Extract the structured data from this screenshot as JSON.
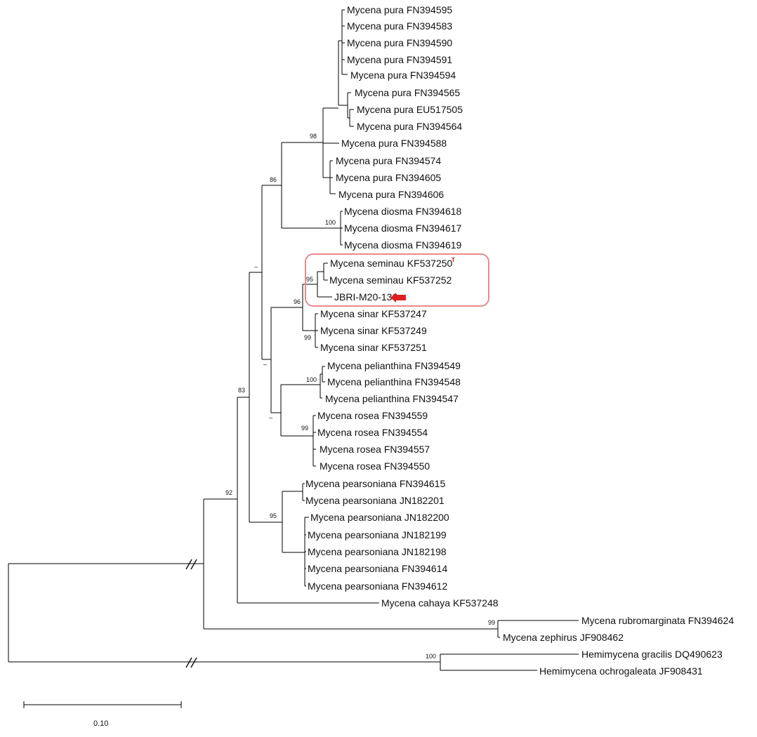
{
  "taxa": [
    "Mycena pura FN394595",
    "Mycena pura FN394583",
    "Mycena pura FN394590",
    "Mycena pura FN394591",
    "Mycena pura FN394594",
    "Mycena pura FN394565",
    "Mycena pura EU517505",
    "Mycena pura FN394564",
    "Mycena pura FN394588",
    "Mycena pura FN394574",
    "Mycena pura FN394605",
    "Mycena pura FN394606",
    "Mycena diosma FN394618",
    "Mycena diosma FN394617",
    "Mycena diosma FN394619",
    "Mycena seminau KF537250",
    "Mycena seminau KF537252",
    "JBRI-M20-136",
    "Mycena sinar KF537247",
    "Mycena sinar KF537249",
    "Mycena sinar KF537251",
    "Mycena pelianthina FN394549",
    "Mycena pelianthina FN394548",
    "Mycena pelianthina FN394547",
    "Mycena rosea FN394559",
    "Mycena rosea FN394554",
    "Mycena rosea FN394557",
    "Mycena rosea FN394550",
    "Mycena pearsoniana FN394615",
    "Mycena pearsoniana JN182201",
    "Mycena pearsoniana JN182200",
    "Mycena pearsoniana JN182199",
    "Mycena pearsoniana JN182198",
    "Mycena pearsoniana FN394614",
    "Mycena pearsoniana FN394612",
    "Mycena cahaya KF537248",
    "Mycena rubromarginata FN394624",
    "Mycena zephirus JF908462",
    "Hemimycena gracilis DQ490623",
    "Hemimycena ochrogaleata JF908431"
  ],
  "type_marker": "T",
  "support_values": [
    "98",
    "86",
    "100",
    "95",
    "96",
    "99",
    "100",
    "99",
    "95",
    "83",
    "92",
    "99",
    "100"
  ],
  "unsupported_marks": [
    "–",
    "–",
    "–"
  ],
  "scale_bar_label": "0.10",
  "colors": {
    "highlight_box": "#e88a8a",
    "arrow": "#e02020",
    "type_marker": "#d01010"
  }
}
